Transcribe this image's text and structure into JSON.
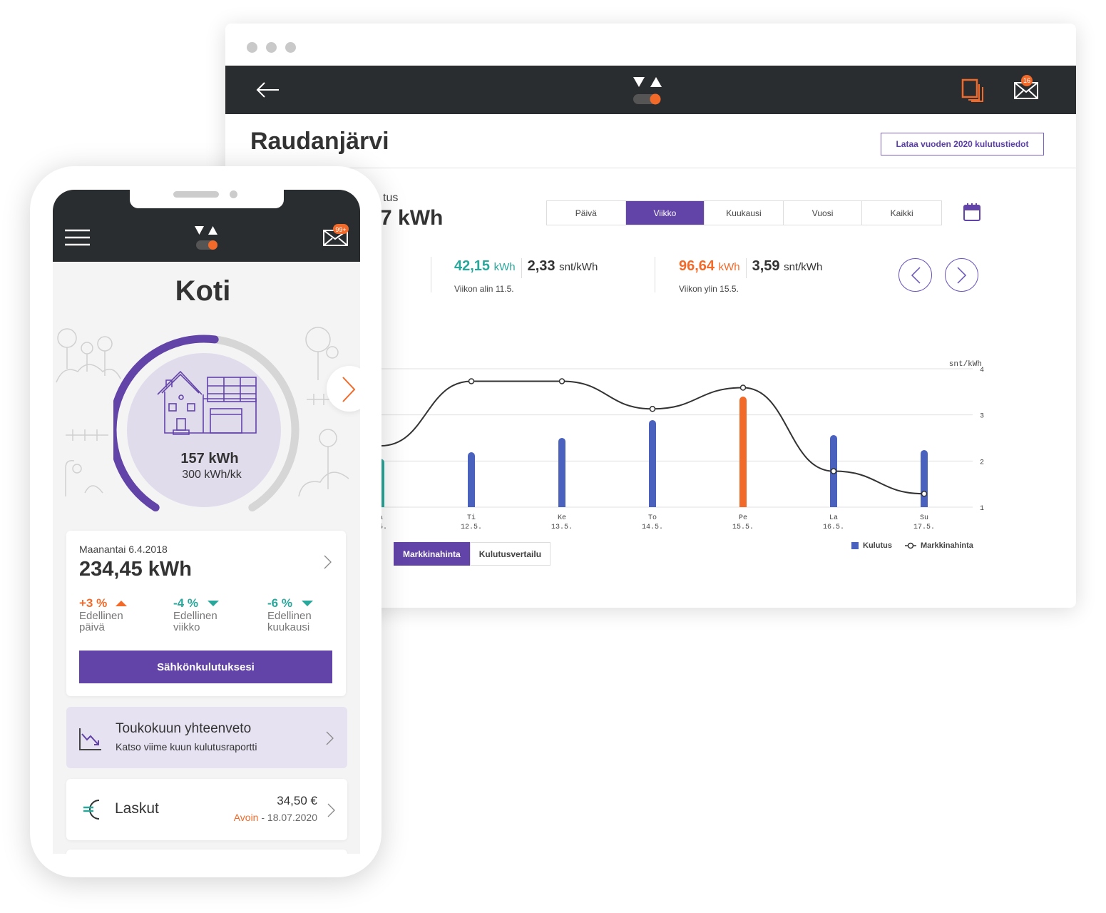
{
  "colors": {
    "accent": "#6243a8",
    "orange": "#f26a2a",
    "teal": "#2aa79b",
    "dark": "#2a2d30",
    "bar": "#4a62bd"
  },
  "browser": {
    "header": {
      "back_icon": "arrow-left-icon",
      "logo": "helen-logo",
      "docs_icon": "documents-icon",
      "mail_icon": "mail-icon",
      "mail_badge": "16"
    },
    "title": "Raudanjärvi",
    "download_button": "Lataa vuoden 2020 kulutustiedot",
    "summary": {
      "label_fragment": "tus",
      "value_fragment": "7 kWh"
    },
    "tabs": [
      "Päivä",
      "Viikko",
      "Kuukausi",
      "Vuosi",
      "Kaikki"
    ],
    "active_tab": "Viikko",
    "calendar_icon": "calendar-icon",
    "stats": {
      "low": {
        "kwh": "42,15",
        "kwh_unit": "kWh",
        "price": "2,33",
        "price_unit": "snt/kWh",
        "label": "Viikon alin 11.5."
      },
      "high": {
        "kwh": "96,64",
        "kwh_unit": "kWh",
        "price": "3,59",
        "price_unit": "snt/kWh",
        "label": "Viikon ylin 15.5."
      }
    },
    "bottom_tabs": [
      "Markkinahinta",
      "Kulutusvertailu"
    ],
    "active_bottom_tab": "Markkinahinta"
  },
  "chart_data": {
    "type": "bar+line",
    "categories": [
      [
        "a",
        ".5."
      ],
      [
        "Ti",
        "12.5."
      ],
      [
        "Ke",
        "13.5."
      ],
      [
        "To",
        "14.5."
      ],
      [
        "Pe",
        "15.5."
      ],
      [
        "La",
        "16.5."
      ],
      [
        "Su",
        "17.5."
      ]
    ],
    "series": [
      {
        "name": "Kulutus",
        "type": "bar",
        "unit": "kWh",
        "values": [
          42.15,
          48.0,
          60.5,
          76.1,
          96.64,
          63.0,
          49.9
        ],
        "highlight": {
          "0": "#2aa79b",
          "4": "#f26a2a"
        }
      },
      {
        "name": "Markkinahinta",
        "type": "line",
        "unit": "snt/kWh",
        "values": [
          2.33,
          3.73,
          3.73,
          3.13,
          3.59,
          1.78,
          1.29
        ]
      }
    ],
    "y2label": "snt/kWh",
    "y2lim": [
      1,
      4
    ],
    "y2ticks": [
      "4",
      "3",
      "2",
      "1"
    ],
    "grid": true,
    "legend": "bottom-right"
  },
  "phone": {
    "header": {
      "menu_icon": "hamburger-icon",
      "mail_badge": "99+"
    },
    "title": "Koti",
    "gauge": {
      "value": "157 kWh",
      "target": "300 kWh/kk",
      "fraction": 0.523
    },
    "today": {
      "date": "Maanantai 6.4.2018",
      "value": "234,45 kWh",
      "changes": [
        {
          "pct": "+3 %",
          "dir": "up",
          "label1": "Edellinen",
          "label2": "päivä"
        },
        {
          "pct": "-4 %",
          "dir": "down",
          "label1": "Edellinen",
          "label2": "viikko"
        },
        {
          "pct": "-6 %",
          "dir": "down",
          "label1": "Edellinen",
          "label2": "kuukausi"
        }
      ],
      "button": "Sähkönkulutuksesi"
    },
    "summary_card": {
      "title": "Toukokuun yhteenveto",
      "subtitle": "Katso viime kuun kulutusraportti"
    },
    "bills": {
      "title": "Laskut",
      "amount": "34,50 €",
      "status": "Avoin",
      "date": " - 18.07.2020"
    }
  }
}
